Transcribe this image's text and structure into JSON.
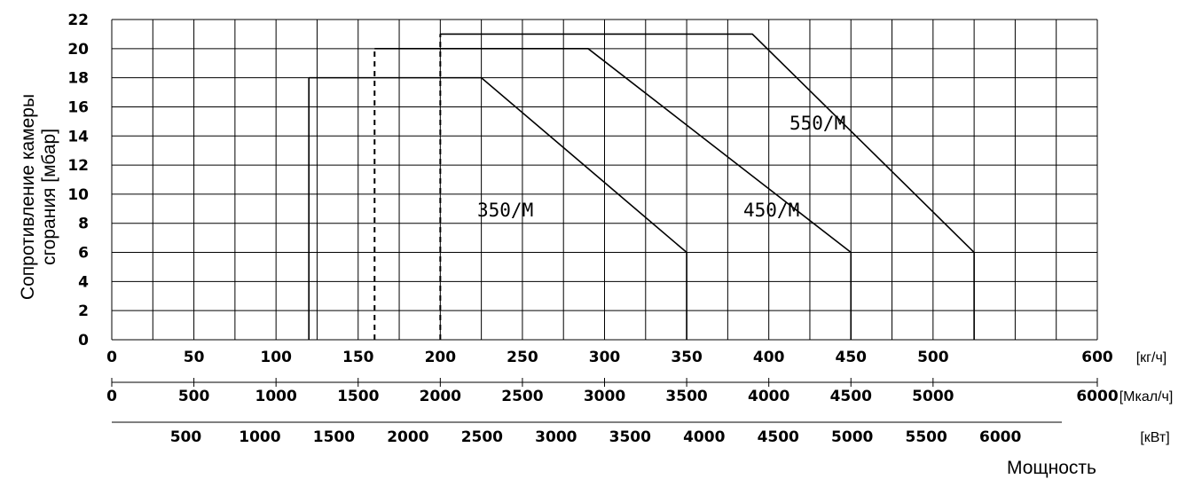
{
  "chart_data": {
    "type": "line",
    "title": "",
    "ylabel_lines": [
      "Сопротивление камеры",
      "сгорания [мбар]"
    ],
    "xlabel": "Мощность",
    "ylim": [
      0,
      22
    ],
    "y_ticks": [
      "0",
      "2",
      "4",
      "6",
      "8",
      "10",
      "12",
      "14",
      "16",
      "18",
      "20",
      "22"
    ],
    "xlim": [
      0,
      600
    ],
    "grid": true,
    "x_axes": [
      {
        "unit": "[кг/ч]",
        "ticks": [
          {
            "value": 0,
            "label": "0"
          },
          {
            "value": 50,
            "label": "50"
          },
          {
            "value": 100,
            "label": "100"
          },
          {
            "value": 150,
            "label": "150"
          },
          {
            "value": 200,
            "label": "200"
          },
          {
            "value": 250,
            "label": "250"
          },
          {
            "value": 300,
            "label": "300"
          },
          {
            "value": 350,
            "label": "350"
          },
          {
            "value": 400,
            "label": "400"
          },
          {
            "value": 450,
            "label": "450"
          },
          {
            "value": 500,
            "label": "500"
          },
          {
            "value": 600,
            "label": "600"
          }
        ]
      },
      {
        "unit": "[Мкал/ч]",
        "ticks": [
          {
            "value": 0,
            "label": "0"
          },
          {
            "value": 500,
            "label": "500"
          },
          {
            "value": 1000,
            "label": "1000"
          },
          {
            "value": 1500,
            "label": "1500"
          },
          {
            "value": 2000,
            "label": "2000"
          },
          {
            "value": 2500,
            "label": "2500"
          },
          {
            "value": 3000,
            "label": "3000"
          },
          {
            "value": 3500,
            "label": "3500"
          },
          {
            "value": 4000,
            "label": "4000"
          },
          {
            "value": 4500,
            "label": "4500"
          },
          {
            "value": 5000,
            "label": "5000"
          },
          {
            "value": 6000,
            "label": "6000"
          }
        ]
      },
      {
        "unit": "[кВт]",
        "ticks": [
          {
            "value": 500,
            "label": "500"
          },
          {
            "value": 1000,
            "label": "1000"
          },
          {
            "value": 1500,
            "label": "1500"
          },
          {
            "value": 2000,
            "label": "2000"
          },
          {
            "value": 2500,
            "label": "2500"
          },
          {
            "value": 3000,
            "label": "3000"
          },
          {
            "value": 3500,
            "label": "3500"
          },
          {
            "value": 4000,
            "label": "4000"
          },
          {
            "value": 4500,
            "label": "4500"
          },
          {
            "value": 5000,
            "label": "5000"
          },
          {
            "value": 5500,
            "label": "5500"
          },
          {
            "value": 6000,
            "label": "6000"
          }
        ]
      }
    ],
    "series": [
      {
        "name": "350/M",
        "x": [
          120,
          120,
          225,
          350,
          350
        ],
        "y": [
          0,
          18,
          18,
          6,
          0
        ]
      },
      {
        "name": "450/M",
        "x": [
          160,
          160,
          290,
          450,
          450
        ],
        "y": [
          0,
          20,
          20,
          6,
          0
        ]
      },
      {
        "name": "550/M",
        "x": [
          200,
          200,
          390,
          525,
          525
        ],
        "y": [
          0,
          21,
          21,
          6,
          0
        ]
      }
    ]
  }
}
